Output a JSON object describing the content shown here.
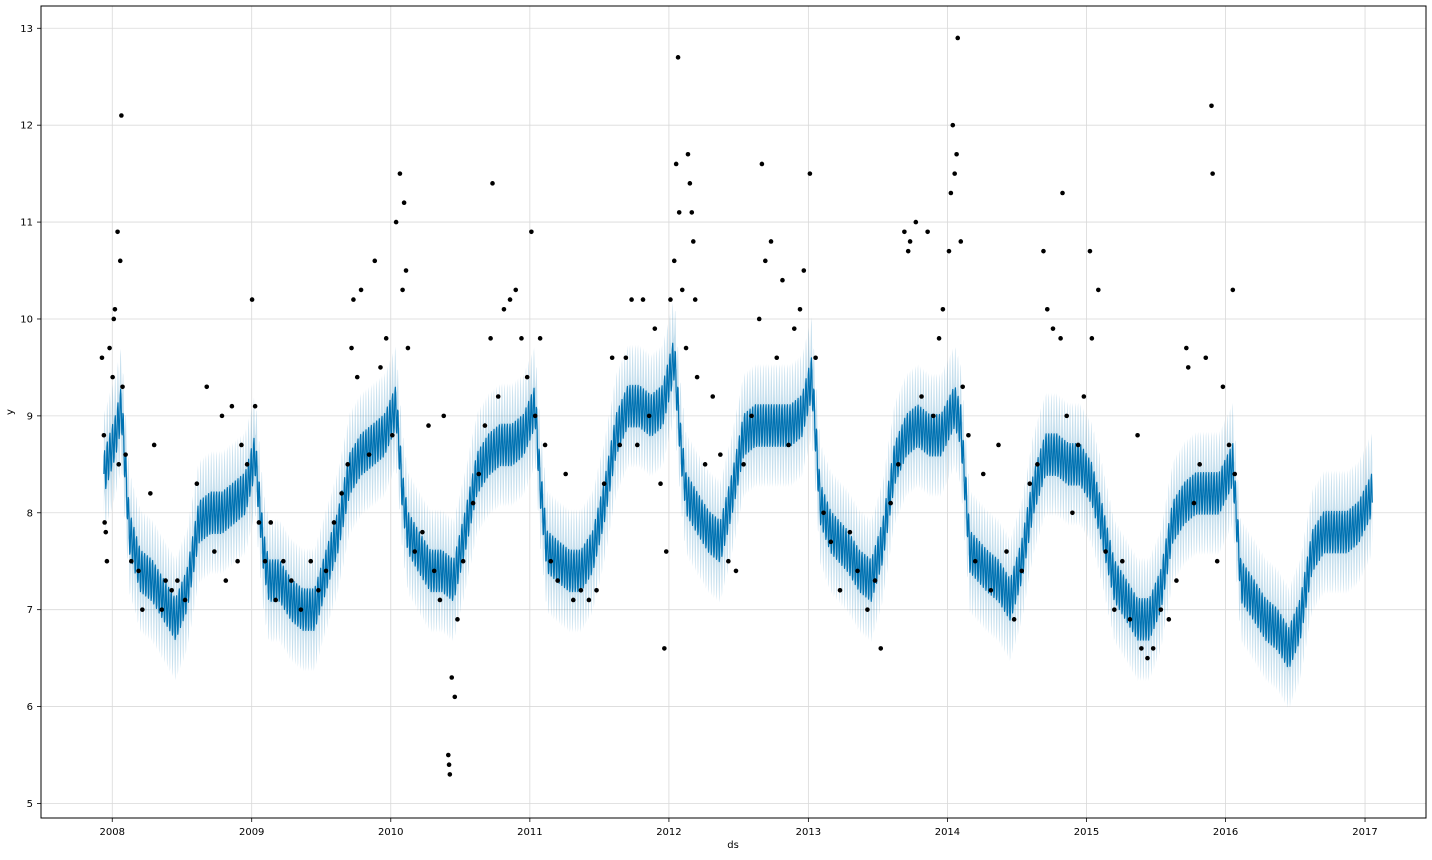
{
  "chart_data": {
    "type": "line",
    "title": "",
    "xlabel": "ds",
    "ylabel": "y",
    "xlim": [
      "2007-06-28",
      "2017-06-10"
    ],
    "ylim": [
      4.85,
      13.23
    ],
    "grid": true,
    "legend": "none",
    "colors": {
      "forecast": "#0072B2",
      "uncertainty": "#0072B2",
      "observed": "#000000",
      "grid": "#d9d9d9"
    },
    "x_ticks": [
      "2008",
      "2009",
      "2010",
      "2011",
      "2012",
      "2013",
      "2014",
      "2015",
      "2016",
      "2017"
    ],
    "y_ticks": [
      "5",
      "6",
      "7",
      "8",
      "9",
      "10",
      "11",
      "12",
      "13"
    ],
    "series": [
      {
        "role": "forecast",
        "x": [
          "2007-12-10",
          "2008-01-10",
          "2008-01-25",
          "2008-02-15",
          "2008-03-15",
          "2008-04-15",
          "2008-05-15",
          "2008-06-15",
          "2008-07-15",
          "2008-08-15",
          "2008-09-15",
          "2008-10-15",
          "2008-11-15",
          "2008-12-15",
          "2009-01-10",
          "2009-02-01",
          "2009-02-15",
          "2009-03-15",
          "2009-04-15",
          "2009-05-15",
          "2009-06-15",
          "2009-07-15",
          "2009-08-15",
          "2009-09-15",
          "2009-10-15",
          "2009-11-15",
          "2009-12-15",
          "2010-01-15",
          "2010-02-01",
          "2010-02-15",
          "2010-03-15",
          "2010-04-15",
          "2010-05-15",
          "2010-06-15",
          "2010-07-15",
          "2010-08-15",
          "2010-09-15",
          "2010-10-15",
          "2010-11-15",
          "2010-12-15",
          "2011-01-15",
          "2011-01-28",
          "2011-02-15",
          "2011-03-15",
          "2011-04-15",
          "2011-05-15",
          "2011-06-15",
          "2011-07-15",
          "2011-08-15",
          "2011-09-15",
          "2011-10-15",
          "2011-11-15",
          "2011-12-15",
          "2012-01-15",
          "2012-02-01",
          "2012-02-15",
          "2012-03-15",
          "2012-04-15",
          "2012-05-15",
          "2012-06-15",
          "2012-07-15",
          "2012-08-15",
          "2012-09-15",
          "2012-10-15",
          "2012-11-15",
          "2012-12-15",
          "2013-01-10",
          "2013-02-01",
          "2013-03-01",
          "2013-04-15",
          "2013-05-15",
          "2013-06-15",
          "2013-07-15",
          "2013-08-15",
          "2013-09-15",
          "2013-10-15",
          "2013-11-15",
          "2013-12-15",
          "2014-01-20",
          "2014-02-05",
          "2014-03-01",
          "2014-04-15",
          "2014-05-15",
          "2014-06-15",
          "2014-07-15",
          "2014-08-15",
          "2014-09-15",
          "2014-10-15",
          "2014-11-15",
          "2014-12-15",
          "2015-01-15",
          "2015-02-10",
          "2015-03-15",
          "2015-04-15",
          "2015-05-15",
          "2015-06-15",
          "2015-07-15",
          "2015-08-15",
          "2015-09-15",
          "2015-10-15",
          "2015-11-15",
          "2015-12-15",
          "2016-01-20",
          "2016-02-10",
          "2016-03-15",
          "2016-04-15",
          "2016-05-15",
          "2016-06-15",
          "2016-07-15",
          "2016-08-15",
          "2016-09-15",
          "2016-10-15",
          "2016-11-15",
          "2016-12-15",
          "2017-01-20"
        ],
        "y": [
          8.4,
          8.8,
          9.1,
          7.8,
          7.4,
          7.3,
          7.1,
          6.9,
          7.2,
          7.9,
          8.0,
          8.0,
          8.1,
          8.2,
          8.6,
          7.6,
          7.3,
          7.3,
          7.1,
          7.0,
          7.0,
          7.4,
          7.8,
          8.4,
          8.6,
          8.7,
          8.8,
          9.1,
          8.2,
          7.8,
          7.6,
          7.4,
          7.4,
          7.3,
          7.8,
          8.4,
          8.6,
          8.7,
          8.7,
          8.8,
          9.1,
          8.3,
          7.6,
          7.5,
          7.4,
          7.4,
          7.6,
          8.1,
          8.8,
          9.1,
          9.1,
          9.0,
          9.1,
          9.6,
          8.7,
          8.2,
          8.0,
          7.8,
          7.7,
          8.2,
          8.8,
          8.9,
          8.9,
          8.9,
          8.9,
          9.0,
          9.4,
          8.1,
          7.8,
          7.6,
          7.4,
          7.3,
          7.7,
          8.5,
          8.8,
          8.9,
          8.8,
          8.8,
          9.1,
          8.9,
          7.6,
          7.4,
          7.3,
          7.1,
          7.5,
          8.2,
          8.6,
          8.6,
          8.5,
          8.5,
          8.3,
          7.9,
          7.3,
          7.1,
          6.9,
          6.9,
          7.2,
          7.9,
          8.1,
          8.2,
          8.2,
          8.2,
          8.5,
          7.3,
          7.1,
          6.9,
          6.8,
          6.6,
          6.9,
          7.6,
          7.8,
          7.8,
          7.8,
          7.9,
          8.2
        ],
        "band": 0.42,
        "weekly_amplitude": 0.22
      },
      {
        "role": "observed",
        "points": [
          [
            "2007-12-05",
            9.6
          ],
          [
            "2007-12-10",
            8.8
          ],
          [
            "2007-12-12",
            7.9
          ],
          [
            "2007-12-15",
            7.8
          ],
          [
            "2007-12-18",
            7.5
          ],
          [
            "2007-12-25",
            9.7
          ],
          [
            "2008-01-02",
            9.4
          ],
          [
            "2008-01-05",
            10.0
          ],
          [
            "2008-01-08",
            10.1
          ],
          [
            "2008-01-15",
            10.9
          ],
          [
            "2008-01-18",
            8.5
          ],
          [
            "2008-01-22",
            10.6
          ],
          [
            "2008-01-25",
            12.1
          ],
          [
            "2008-01-28",
            9.3
          ],
          [
            "2008-02-05",
            8.6
          ],
          [
            "2008-02-20",
            7.5
          ],
          [
            "2008-03-10",
            7.4
          ],
          [
            "2008-03-20",
            7.0
          ],
          [
            "2008-04-10",
            8.2
          ],
          [
            "2008-04-20",
            8.7
          ],
          [
            "2008-05-10",
            7.0
          ],
          [
            "2008-05-20",
            7.3
          ],
          [
            "2008-06-05",
            7.2
          ],
          [
            "2008-06-20",
            7.3
          ],
          [
            "2008-07-10",
            7.1
          ],
          [
            "2008-08-10",
            8.3
          ],
          [
            "2008-09-05",
            9.3
          ],
          [
            "2008-09-25",
            7.6
          ],
          [
            "2008-10-15",
            9.0
          ],
          [
            "2008-10-25",
            7.3
          ],
          [
            "2008-11-10",
            9.1
          ],
          [
            "2008-11-25",
            7.5
          ],
          [
            "2008-12-05",
            8.7
          ],
          [
            "2008-12-20",
            8.5
          ],
          [
            "2009-01-02",
            10.2
          ],
          [
            "2009-01-10",
            9.1
          ],
          [
            "2009-01-20",
            7.9
          ],
          [
            "2009-02-05",
            7.5
          ],
          [
            "2009-02-20",
            7.9
          ],
          [
            "2009-03-05",
            7.1
          ],
          [
            "2009-03-25",
            7.5
          ],
          [
            "2009-04-15",
            7.3
          ],
          [
            "2009-05-10",
            7.0
          ],
          [
            "2009-06-05",
            7.5
          ],
          [
            "2009-06-25",
            7.2
          ],
          [
            "2009-07-15",
            7.4
          ],
          [
            "2009-08-05",
            7.9
          ],
          [
            "2009-08-25",
            8.2
          ],
          [
            "2009-09-10",
            8.5
          ],
          [
            "2009-09-20",
            9.7
          ],
          [
            "2009-09-25",
            10.2
          ],
          [
            "2009-10-05",
            9.4
          ],
          [
            "2009-10-15",
            10.3
          ],
          [
            "2009-11-05",
            8.6
          ],
          [
            "2009-11-20",
            10.6
          ],
          [
            "2009-12-05",
            9.5
          ],
          [
            "2009-12-20",
            9.8
          ],
          [
            "2010-01-05",
            8.8
          ],
          [
            "2010-01-15",
            11.0
          ],
          [
            "2010-01-25",
            11.5
          ],
          [
            "2010-02-01",
            10.3
          ],
          [
            "2010-02-05",
            11.2
          ],
          [
            "2010-02-10",
            10.5
          ],
          [
            "2010-02-15",
            9.7
          ],
          [
            "2010-03-05",
            7.6
          ],
          [
            "2010-03-25",
            7.8
          ],
          [
            "2010-04-10",
            8.9
          ],
          [
            "2010-04-25",
            7.4
          ],
          [
            "2010-05-10",
            7.1
          ],
          [
            "2010-05-20",
            9.0
          ],
          [
            "2010-06-01",
            5.5
          ],
          [
            "2010-06-03",
            5.4
          ],
          [
            "2010-06-05",
            5.3
          ],
          [
            "2010-06-10",
            6.3
          ],
          [
            "2010-06-18",
            6.1
          ],
          [
            "2010-06-25",
            6.9
          ],
          [
            "2010-07-10",
            7.5
          ],
          [
            "2010-08-05",
            8.1
          ],
          [
            "2010-08-20",
            8.4
          ],
          [
            "2010-09-05",
            8.9
          ],
          [
            "2010-09-20",
            9.8
          ],
          [
            "2010-09-25",
            11.4
          ],
          [
            "2010-10-10",
            9.2
          ],
          [
            "2010-10-25",
            10.1
          ],
          [
            "2010-11-10",
            10.2
          ],
          [
            "2010-11-25",
            10.3
          ],
          [
            "2010-12-10",
            9.8
          ],
          [
            "2010-12-25",
            9.4
          ],
          [
            "2011-01-05",
            10.9
          ],
          [
            "2011-01-15",
            9.0
          ],
          [
            "2011-01-28",
            9.8
          ],
          [
            "2011-02-10",
            8.7
          ],
          [
            "2011-02-25",
            7.5
          ],
          [
            "2011-03-15",
            7.3
          ],
          [
            "2011-04-05",
            8.4
          ],
          [
            "2011-04-25",
            7.1
          ],
          [
            "2011-05-15",
            7.2
          ],
          [
            "2011-06-05",
            7.1
          ],
          [
            "2011-06-25",
            7.2
          ],
          [
            "2011-07-15",
            8.3
          ],
          [
            "2011-08-05",
            9.6
          ],
          [
            "2011-08-25",
            8.7
          ],
          [
            "2011-09-10",
            9.6
          ],
          [
            "2011-09-25",
            10.2
          ],
          [
            "2011-10-10",
            8.7
          ],
          [
            "2011-10-25",
            10.2
          ],
          [
            "2011-11-10",
            9.0
          ],
          [
            "2011-11-25",
            9.9
          ],
          [
            "2011-12-10",
            8.3
          ],
          [
            "2011-12-20",
            6.6
          ],
          [
            "2011-12-25",
            7.6
          ],
          [
            "2012-01-05",
            10.2
          ],
          [
            "2012-01-15",
            10.6
          ],
          [
            "2012-01-20",
            11.6
          ],
          [
            "2012-01-25",
            12.7
          ],
          [
            "2012-01-28",
            11.1
          ],
          [
            "2012-02-05",
            10.3
          ],
          [
            "2012-02-15",
            9.7
          ],
          [
            "2012-02-20",
            11.7
          ],
          [
            "2012-02-25",
            11.4
          ],
          [
            "2012-03-01",
            11.1
          ],
          [
            "2012-03-05",
            10.8
          ],
          [
            "2012-03-10",
            10.2
          ],
          [
            "2012-03-15",
            9.4
          ],
          [
            "2012-04-05",
            8.5
          ],
          [
            "2012-04-25",
            9.2
          ],
          [
            "2012-05-15",
            8.6
          ],
          [
            "2012-06-05",
            7.5
          ],
          [
            "2012-06-25",
            7.4
          ],
          [
            "2012-07-15",
            8.5
          ],
          [
            "2012-08-05",
            9.0
          ],
          [
            "2012-08-25",
            10.0
          ],
          [
            "2012-09-01",
            11.6
          ],
          [
            "2012-09-10",
            10.6
          ],
          [
            "2012-09-25",
            10.8
          ],
          [
            "2012-10-10",
            9.6
          ],
          [
            "2012-10-25",
            10.4
          ],
          [
            "2012-11-10",
            8.7
          ],
          [
            "2012-11-25",
            9.9
          ],
          [
            "2012-12-10",
            10.1
          ],
          [
            "2012-12-20",
            10.5
          ],
          [
            "2013-01-05",
            11.5
          ],
          [
            "2013-01-20",
            9.6
          ],
          [
            "2013-02-10",
            8.0
          ],
          [
            "2013-03-01",
            7.7
          ],
          [
            "2013-03-25",
            7.2
          ],
          [
            "2013-04-20",
            7.8
          ],
          [
            "2013-05-10",
            7.4
          ],
          [
            "2013-06-05",
            7.0
          ],
          [
            "2013-06-25",
            7.3
          ],
          [
            "2013-07-10",
            6.6
          ],
          [
            "2013-08-05",
            8.1
          ],
          [
            "2013-08-25",
            8.5
          ],
          [
            "2013-09-10",
            10.9
          ],
          [
            "2013-09-20",
            10.7
          ],
          [
            "2013-09-25",
            10.8
          ],
          [
            "2013-10-10",
            11.0
          ],
          [
            "2013-10-25",
            9.2
          ],
          [
            "2013-11-10",
            10.9
          ],
          [
            "2013-11-25",
            9.0
          ],
          [
            "2013-12-10",
            9.8
          ],
          [
            "2013-12-20",
            10.1
          ],
          [
            "2014-01-05",
            10.7
          ],
          [
            "2014-01-10",
            11.3
          ],
          [
            "2014-01-15",
            12.0
          ],
          [
            "2014-01-20",
            11.5
          ],
          [
            "2014-01-25",
            11.7
          ],
          [
            "2014-01-28",
            12.9
          ],
          [
            "2014-02-05",
            10.8
          ],
          [
            "2014-02-10",
            9.3
          ],
          [
            "2014-02-25",
            8.8
          ],
          [
            "2014-03-15",
            7.5
          ],
          [
            "2014-04-05",
            8.4
          ],
          [
            "2014-04-25",
            7.2
          ],
          [
            "2014-05-15",
            8.7
          ],
          [
            "2014-06-05",
            7.6
          ],
          [
            "2014-06-25",
            6.9
          ],
          [
            "2014-07-15",
            7.4
          ],
          [
            "2014-08-05",
            8.3
          ],
          [
            "2014-08-25",
            8.5
          ],
          [
            "2014-09-10",
            10.7
          ],
          [
            "2014-09-20",
            10.1
          ],
          [
            "2014-10-05",
            9.9
          ],
          [
            "2014-10-25",
            9.8
          ],
          [
            "2014-10-30",
            11.3
          ],
          [
            "2014-11-10",
            9.0
          ],
          [
            "2014-11-25",
            8.0
          ],
          [
            "2014-12-10",
            8.7
          ],
          [
            "2014-12-25",
            9.2
          ],
          [
            "2015-01-10",
            10.7
          ],
          [
            "2015-01-15",
            9.8
          ],
          [
            "2015-02-01",
            10.3
          ],
          [
            "2015-02-20",
            7.6
          ],
          [
            "2015-03-15",
            7.0
          ],
          [
            "2015-04-05",
            7.5
          ],
          [
            "2015-04-25",
            6.9
          ],
          [
            "2015-05-15",
            8.8
          ],
          [
            "2015-05-25",
            6.6
          ],
          [
            "2015-06-10",
            6.5
          ],
          [
            "2015-06-25",
            6.6
          ],
          [
            "2015-07-15",
            7.0
          ],
          [
            "2015-08-05",
            6.9
          ],
          [
            "2015-08-25",
            7.3
          ],
          [
            "2015-09-20",
            9.7
          ],
          [
            "2015-09-25",
            9.5
          ],
          [
            "2015-10-10",
            8.1
          ],
          [
            "2015-10-25",
            8.5
          ],
          [
            "2015-11-10",
            9.6
          ],
          [
            "2015-11-25",
            12.2
          ],
          [
            "2015-11-28",
            11.5
          ],
          [
            "2015-12-10",
            7.5
          ],
          [
            "2015-12-25",
            9.3
          ],
          [
            "2016-01-10",
            8.7
          ],
          [
            "2016-01-20",
            10.3
          ],
          [
            "2016-01-25",
            8.4
          ]
        ]
      }
    ]
  }
}
